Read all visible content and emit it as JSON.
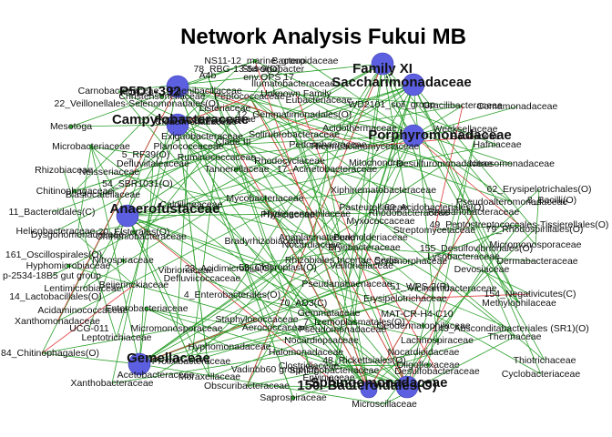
{
  "title": "Network Analysis Fukui MB",
  "colors": {
    "edge_positive": "#2ca02c",
    "edge_negative": "#e0383a",
    "hub": "#5b5fe0",
    "node_minor": "#2ca02c"
  },
  "hubs": [
    "P5D1-392",
    "Family XI",
    "Saccharimonadaceae",
    "Campylobacteraceae",
    "Porphyromonadaceae",
    "Anaerofustaceae",
    "Gemellaceae",
    "Sphingomonadaceae",
    "150_Bacteroidales(O)"
  ],
  "labels": [
    "NS11-12_marine_group",
    "78_RBG-13-54-9(O)",
    "Bacteroidaceae",
    "Steroidobacter",
    "A4b",
    "env.OPS 17",
    "Ilumatobacteraceae",
    "Paenibacillaceae",
    "Carnobacteriaceae",
    "Christensenellaceae",
    "Peptococcaceae",
    "Unknown Family",
    "22_Veillonellales-Selenomonadales(O)",
    "Listeriaceae",
    "Eubacteriaceae",
    "WD2101_soil_group",
    "Gracilibacteraceae",
    "Comamonadaceae",
    "Mesotoga",
    "Peptostreptococcaceae",
    "12_Gemmatimonadales(O)",
    "Cloacimonadaceae",
    "Exiguobacteraceae",
    "Clade III",
    "Acidothermaceae",
    "Weeksellaceae",
    "Bacillaceae",
    "Microbacteriaceae",
    "Planococcaceae",
    "Solirubrobacteraceae",
    "Pedosphaeraceae",
    "Thermoactinomycetaceae",
    "Hafniaceae",
    "5_RF39(O)",
    "Ruminococcaceae",
    "Rhodocyclaceae",
    "Tannerellaceae",
    "17_Acinetobacteraceae",
    "Mitochondria",
    "Desulfuromonadaceae",
    "Defluviitaleaceae",
    "Nitrosomonadaceae",
    "Rhizobiaceae",
    "Neisseriaceae",
    "Blastocatellaceae",
    "Chitinophagaceae",
    "54_SBR1031(O)",
    "Caldilineaceae",
    "Xiphinematobacteraceae",
    "Pasteurellaceae",
    "60_Acidobacteriales(O)",
    "Pseudoalteromonadaceae",
    "62_Erysipelotrichales(O)",
    "8_Bacilli(O)",
    "Mycobacteriaceae",
    "11_Bacteroidales(C)",
    "Hydrogenophilaceae",
    "Rhodobacteraceae",
    "Helicobacteraceae",
    "Dysgonomonadaceae",
    "Chthoniobacteraceae",
    "Anaplasmataceae",
    "Physciaceae",
    "20_Elsterales(O)",
    "Bradyrhizobiaceae",
    "Nocardiaceae",
    "Burkholderiaceae",
    "Streptomycetaceae",
    "49_Peptostreptococcales-Tissierellales(O)",
    "79_Rhodospirillales(O)",
    "Micromonosporaceae",
    "161_Oscillospirales(O)",
    "Nitrospiraceae",
    "155_Desulfovibrionales(O)",
    "Vibrionaceae",
    "23_Acidimicrobiia(C)",
    "53_Chloroplast(O)",
    "Rhizobiales Incertae Sedis",
    "Cryomorphaceae",
    "Dermabacteraceae",
    "p-2534-18B5 gut group",
    "Hyphomicrobiaceae",
    "Devosiaceae",
    "14_Lactobacillales(O)",
    "Lentimicrobiaceae",
    "Beijerinckiaceae",
    "Pseudanabaenaceae",
    "Veillonellaceae",
    "51_WPS-2(R)",
    "Acidaminococcaceae",
    "Enterobacteriaceae",
    "4_Enterobacterales(O)",
    "70_AD3(C)",
    "Erysipelotrichaceae",
    "154_Negativicutes(C)",
    "Xanthomonadaceae",
    "UCG-011",
    "Methylophilaceae",
    "Gemmataceae",
    "7_Izemoplasmatales(O)",
    "MAT-CR-H4-C10",
    "Leptotrichiaceae",
    "Staphylococcaceae",
    "84_Chitinophagales(O)",
    "Aerococcaceae",
    "Pseudomonadaceae",
    "143_Absconditabacteriales (SR1)(O)",
    "Micromonosporaceae",
    "Lachnospiraceae",
    "Thermaceae",
    "Nocardiopsaceae",
    "Xanthobacteraceae",
    "Halomonadaceae",
    "Nocardioidaceae",
    "Thiotrichaceae",
    "Hyphomonadaceae",
    "48_Rickettsiales(O)",
    "Oligoflexaceae",
    "Cyclobacteriaceae",
    "Acetobacteraceae",
    "Prolixibacteraceae",
    "Moraxellaceae",
    "Erwiniaceae",
    "Clostridiaceae",
    "Obscuribacteraceae",
    "Microscillaceae",
    "Saprospiraceae",
    "Vadinbb60 group(O)",
    "Sphingobacteriaceae",
    "Desulfobacteraceae",
    "Bryobacteraceae",
    "Vicinamibacteraceae",
    "Defluviicoccaceae",
    "Lysobacteraceae",
    "Myxococcaceae",
    "Geodermatophilaceae",
    "Rhodanobacteraceae"
  ]
}
